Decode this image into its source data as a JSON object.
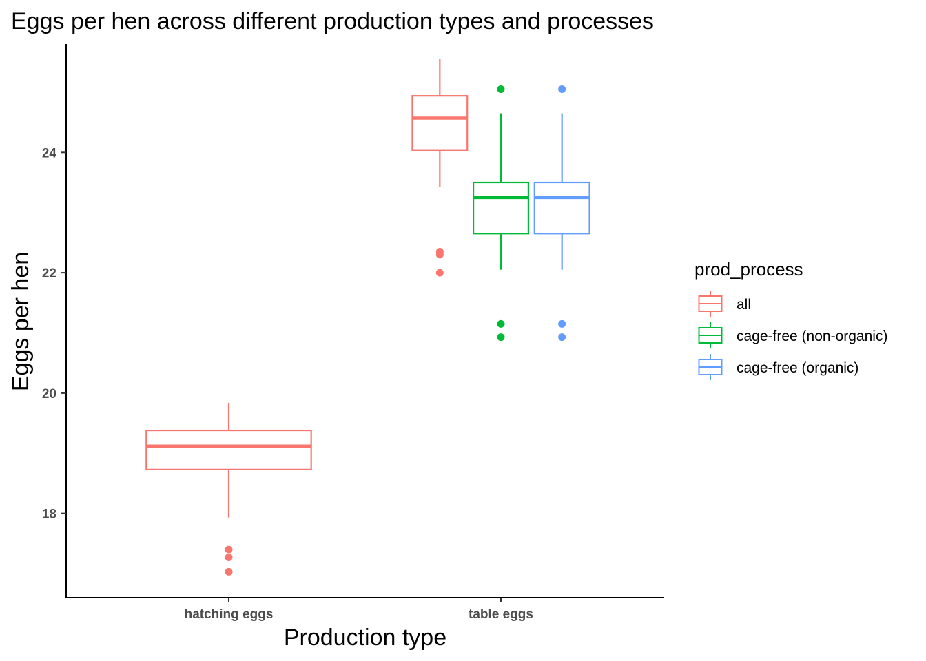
{
  "chart_data": {
    "type": "box",
    "title": "Eggs per hen across different production types and processes",
    "xlabel": "Production type",
    "ylabel": "Eggs per hen",
    "ylim": [
      16.6,
      25.8
    ],
    "yticks": [
      18,
      20,
      22,
      24
    ],
    "categories": [
      "hatching eggs",
      "table eggs"
    ],
    "legend": {
      "title": "prod_process",
      "position": "right"
    },
    "series": [
      {
        "name": "all",
        "color": "#F8766D",
        "boxes": [
          {
            "category": "hatching eggs",
            "whisker_low": 17.93,
            "q1": 18.73,
            "median": 19.12,
            "q3": 19.38,
            "whisker_high": 19.83,
            "outliers": [
              17.4,
              17.27,
              17.03
            ]
          },
          {
            "category": "table eggs",
            "whisker_low": 23.43,
            "q1": 24.03,
            "median": 24.57,
            "q3": 24.94,
            "whisker_high": 25.56,
            "outliers": [
              22.35,
              22.3,
              22.0
            ]
          }
        ]
      },
      {
        "name": "cage-free (non-organic)",
        "color": "#00BA38",
        "boxes": [
          {
            "category": "table eggs",
            "whisker_low": 22.05,
            "q1": 22.65,
            "median": 23.25,
            "q3": 23.5,
            "whisker_high": 24.65,
            "outliers": [
              25.05,
              21.15,
              20.93
            ]
          }
        ]
      },
      {
        "name": "cage-free (organic)",
        "color": "#619CFF",
        "boxes": [
          {
            "category": "table eggs",
            "whisker_low": 22.05,
            "q1": 22.65,
            "median": 23.25,
            "q3": 23.5,
            "whisker_high": 24.65,
            "outliers": [
              25.05,
              21.15,
              20.93
            ]
          }
        ]
      }
    ]
  }
}
